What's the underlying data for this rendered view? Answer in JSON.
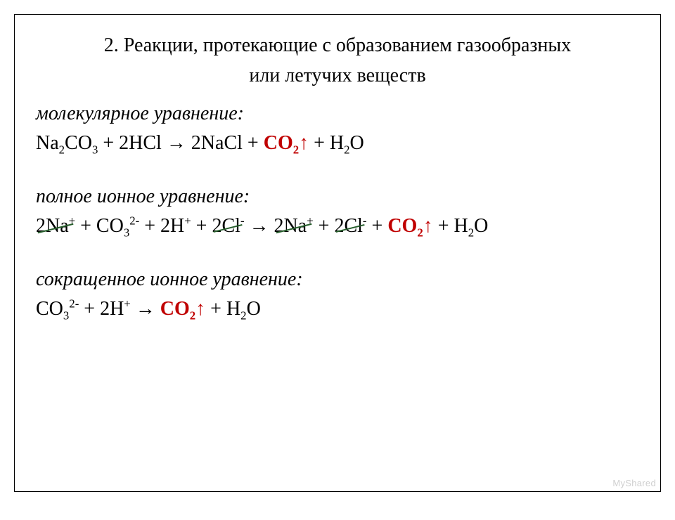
{
  "title_line1": "2. Реакции, протекающие с образованием газообразных",
  "title_line2": "или летучих веществ",
  "labels": {
    "molecular": "молекулярное уравнение:",
    "full_ionic": "полное ионное уравнение:",
    "net_ionic": "сокращенное ионное уравнение:"
  },
  "eq": {
    "molecular_before": "Na",
    "molecular_b2": "CO",
    "molecular_b3": " + 2HCl → 2NaCl + ",
    "gas_co2": "CO",
    "gas_arrow": "↑",
    "molecular_after": " + H",
    "water_o": "O",
    "fi_1": "2Na",
    "fi_2": " + CO",
    "fi_3": " + 2H",
    "fi_4": " + ",
    "fi_cl": "2Cl",
    "fi_5": " → ",
    "fi_6": " + ",
    "fi_7": " + ",
    "ni_1": "CO",
    "ni_2": " + 2H",
    "ni_3": " → "
  },
  "sub": {
    "two": "2",
    "three": "3"
  },
  "sup": {
    "plus": "+",
    "minus": "-",
    "twominus": "2-"
  },
  "watermark": "MyShared",
  "colors": {
    "text": "#000000",
    "gas": "#c00000",
    "strike": "#265e2b",
    "border": "#000000",
    "background": "#ffffff",
    "watermark": "#cfcfcf"
  },
  "fontsizes": {
    "title": 28,
    "body": 28,
    "watermark": 13
  }
}
